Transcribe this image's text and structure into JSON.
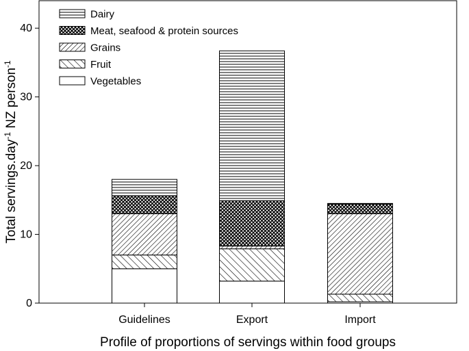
{
  "chart_data": {
    "type": "bar",
    "stacked": true,
    "categories": [
      "Guidelines",
      "Export",
      "Import"
    ],
    "series": [
      {
        "name": "Vegetables",
        "pattern": "blank",
        "values": [
          5.0,
          3.2,
          0.2
        ]
      },
      {
        "name": "Fruit",
        "pattern": "diagonal-wide",
        "values": [
          2.0,
          4.7,
          1.1
        ]
      },
      {
        "name": "Grains",
        "pattern": "diagonal-dense",
        "values": [
          6.0,
          0.4,
          11.7
        ]
      },
      {
        "name": "Meat, seafood & protein sources",
        "pattern": "crosshatch",
        "values": [
          2.6,
          6.6,
          1.4
        ]
      },
      {
        "name": "Dairy",
        "pattern": "horizontal-lines",
        "values": [
          2.4,
          21.8,
          0.1
        ]
      }
    ],
    "xlabel": "Profile of proportions of servings within food groups",
    "ylabel": {
      "base": "Total servings.day",
      "sup1": "-1",
      "mid": " NZ person",
      "sup2": "-1"
    },
    "ylim": [
      0,
      44
    ],
    "yticks": [
      "0",
      "10",
      "20",
      "30",
      "40"
    ],
    "legend_order": [
      "Dairy",
      "Meat, seafood & protein sources",
      "Grains",
      "Fruit",
      "Vegetables"
    ],
    "legend_position": "top-left",
    "grid": false
  }
}
